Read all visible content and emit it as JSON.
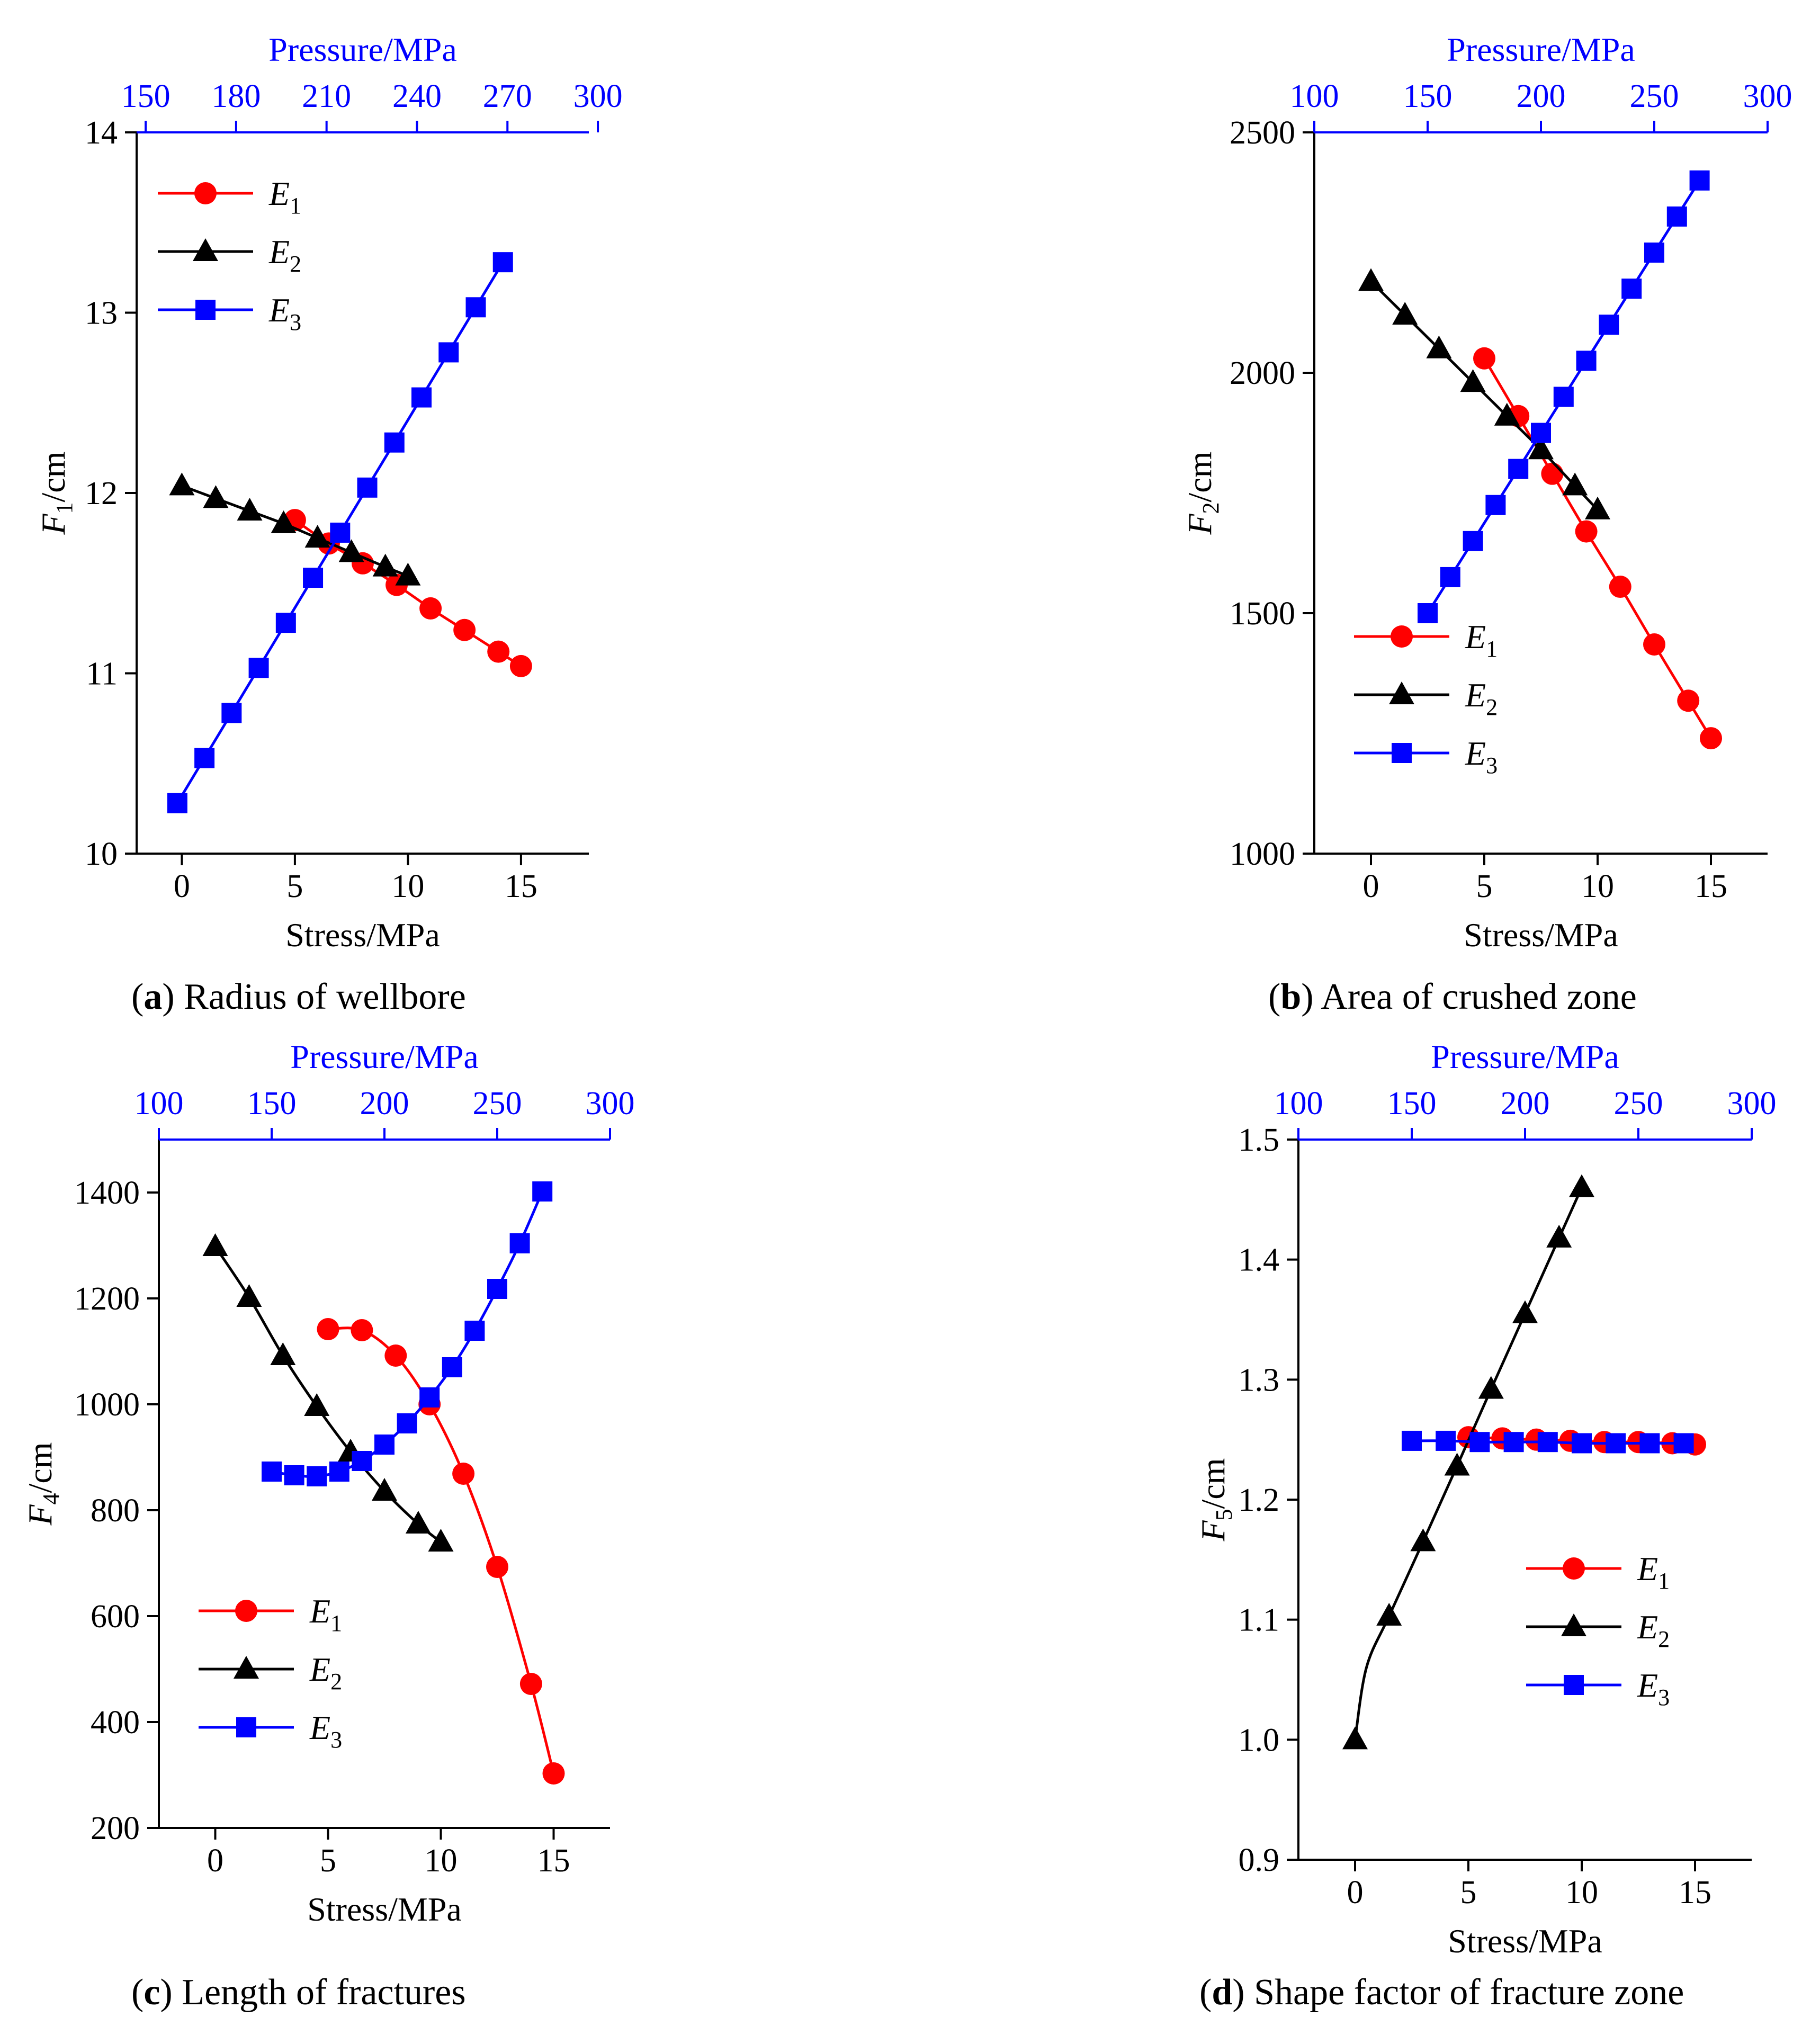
{
  "chart_data": [
    {
      "type": "line",
      "caption_letter": "(a)",
      "caption_text": " Radius of wellbore",
      "xlabel": "Stress/MPa",
      "ylabel_main": "F",
      "ylabel_sub": "1",
      "ylabel_unit": "/cm",
      "x2label": "Pressure/MPa",
      "xlim": [
        -2,
        18
      ],
      "xticks": [
        "0",
        "5",
        "10",
        "15"
      ],
      "ylim": [
        10,
        14
      ],
      "yticks": [
        "10",
        "11",
        "12",
        "13",
        "14"
      ],
      "x2lim": [
        147,
        297
      ],
      "x2ticks": [
        "150",
        "180",
        "210",
        "240",
        "270",
        "300"
      ],
      "legend": "top-left",
      "series": [
        {
          "name": "E",
          "sub": "1",
          "color": "#ff0000",
          "marker": "circle",
          "x": [
            5,
            6.5,
            8,
            9.5,
            11,
            12.5,
            14,
            15
          ],
          "y": [
            11.85,
            11.72,
            11.61,
            11.49,
            11.36,
            11.24,
            11.12,
            11.04
          ]
        },
        {
          "name": "E",
          "sub": "2",
          "color": "#000000",
          "marker": "triangle",
          "x": [
            0,
            1.5,
            3,
            4.5,
            6,
            7.5,
            9,
            10
          ],
          "y": [
            12.04,
            11.97,
            11.9,
            11.83,
            11.75,
            11.67,
            11.59,
            11.54
          ]
        },
        {
          "name": "E",
          "sub": "3",
          "color": "#0000ff",
          "marker": "square",
          "x": [
            -0.2,
            1,
            2.2,
            3.4,
            4.6,
            5.8,
            7,
            8.2,
            9.4,
            10.6,
            11.8,
            13,
            14.2
          ],
          "y": [
            10.28,
            10.53,
            10.78,
            11.03,
            11.28,
            11.53,
            11.78,
            12.03,
            12.28,
            12.53,
            12.78,
            13.03,
            13.28
          ]
        }
      ]
    },
    {
      "type": "line",
      "caption_letter": "(b)",
      "caption_text": " Area of crushed zone",
      "xlabel": "Stress/MPa",
      "ylabel_main": "F",
      "ylabel_sub": "2",
      "ylabel_unit": "/cm",
      "x2label": "Pressure/MPa",
      "xlim": [
        -2.5,
        17.5
      ],
      "xticks": [
        "0",
        "5",
        "10",
        "15"
      ],
      "ylim": [
        1000,
        2500
      ],
      "yticks": [
        "1000",
        "1500",
        "2000",
        "2500"
      ],
      "x2lim": [
        100,
        300
      ],
      "x2ticks": [
        "100",
        "150",
        "200",
        "250",
        "300"
      ],
      "legend": "bottom-left",
      "series": [
        {
          "name": "E",
          "sub": "1",
          "color": "#ff0000",
          "marker": "circle",
          "x": [
            5,
            6.5,
            8,
            9.5,
            11,
            12.5,
            14,
            15
          ],
          "y": [
            2030,
            1910,
            1790,
            1670,
            1555,
            1435,
            1318,
            1240
          ]
        },
        {
          "name": "E",
          "sub": "2",
          "color": "#000000",
          "marker": "triangle",
          "x": [
            0,
            1.5,
            3,
            4.5,
            6,
            7.5,
            9,
            10
          ],
          "y": [
            2190,
            2120,
            2050,
            1980,
            1910,
            1840,
            1765,
            1715
          ]
        },
        {
          "name": "E",
          "sub": "3",
          "color": "#0000ff",
          "marker": "square",
          "x": [
            2.5,
            3.5,
            4.5,
            5.5,
            6.5,
            7.5,
            8.5,
            9.5,
            10.5,
            11.5,
            12.5,
            13.5,
            14.5
          ],
          "y": [
            1500,
            1575,
            1650,
            1725,
            1800,
            1875,
            1950,
            2025,
            2100,
            2175,
            2250,
            2325,
            2400
          ]
        }
      ]
    },
    {
      "type": "line",
      "caption_letter": "(c)",
      "caption_text": " Length of fractures",
      "xlabel": "Stress/MPa",
      "ylabel_main": "F",
      "ylabel_sub": "4",
      "ylabel_unit": "/cm",
      "x2label": "Pressure/MPa",
      "xlim": [
        -2.5,
        17.5
      ],
      "xticks": [
        "0",
        "5",
        "10",
        "15"
      ],
      "ylim": [
        200,
        1500
      ],
      "yticks": [
        "200",
        "400",
        "600",
        "800",
        "1000",
        "1200",
        "1400"
      ],
      "x2lim": [
        100,
        300
      ],
      "x2ticks": [
        "100",
        "150",
        "200",
        "250",
        "300"
      ],
      "legend": "bottom-left",
      "series": [
        {
          "name": "E",
          "sub": "1",
          "color": "#ff0000",
          "marker": "circle",
          "x": [
            5,
            6.5,
            8,
            9.5,
            11,
            12.5,
            14,
            15
          ],
          "y": [
            1142,
            1140,
            1092,
            1000,
            869,
            693,
            472,
            303
          ]
        },
        {
          "name": "E",
          "sub": "2",
          "color": "#000000",
          "marker": "triangle",
          "x": [
            0,
            1.5,
            3,
            4.5,
            6,
            7.5,
            9,
            10
          ],
          "y": [
            1298,
            1202,
            1092,
            996,
            910,
            836,
            774,
            740
          ]
        },
        {
          "name": "E",
          "sub": "3",
          "color": "#0000ff",
          "marker": "square",
          "x": [
            2.5,
            3.5,
            4.5,
            5.5,
            6.5,
            7.5,
            8.5,
            9.5,
            10.5,
            11.5,
            12.5,
            13.5,
            14.5
          ],
          "y": [
            873,
            866,
            864,
            873,
            893,
            924,
            964,
            1013,
            1070,
            1139,
            1218,
            1304,
            1402
          ]
        }
      ]
    },
    {
      "type": "line",
      "caption_letter": "(d)",
      "caption_text": " Shape factor of fracture zone",
      "xlabel": "Stress/MPa",
      "ylabel_main": "F",
      "ylabel_sub": "5",
      "ylabel_unit": "/cm",
      "x2label": "Pressure/MPa",
      "xlim": [
        -2.5,
        17.5
      ],
      "xticks": [
        "0",
        "5",
        "10",
        "15"
      ],
      "ylim": [
        0.9,
        1.5
      ],
      "yticks": [
        "0.9",
        "1.0",
        "1.1",
        "1.2",
        "1.3",
        "1.4",
        "1.5"
      ],
      "x2lim": [
        100,
        300
      ],
      "x2ticks": [
        "100",
        "150",
        "200",
        "250",
        "300"
      ],
      "legend": "middle-right",
      "series": [
        {
          "name": "E",
          "sub": "1",
          "color": "#ff0000",
          "marker": "circle",
          "x": [
            5,
            6.5,
            8,
            9.5,
            11,
            12.5,
            14,
            15
          ],
          "y": [
            1.252,
            1.251,
            1.25,
            1.249,
            1.248,
            1.248,
            1.247,
            1.246
          ]
        },
        {
          "name": "E",
          "sub": "2",
          "color": "#000000",
          "marker": "triangle",
          "x": [
            0,
            0.5,
            1.5,
            3,
            4.5,
            6,
            7.5,
            9,
            10
          ],
          "markers": [
            true,
            false,
            true,
            true,
            true,
            true,
            true,
            true,
            true
          ],
          "y": [
            1.0,
            1.06,
            1.103,
            1.165,
            1.228,
            1.292,
            1.355,
            1.418,
            1.46
          ]
        },
        {
          "name": "E",
          "sub": "3",
          "color": "#0000ff",
          "marker": "square",
          "x": [
            2.5,
            4,
            5.5,
            7,
            8.5,
            10,
            11.5,
            13,
            14.5
          ],
          "y": [
            1.249,
            1.249,
            1.248,
            1.248,
            1.248,
            1.247,
            1.247,
            1.247,
            1.247
          ]
        }
      ]
    }
  ]
}
